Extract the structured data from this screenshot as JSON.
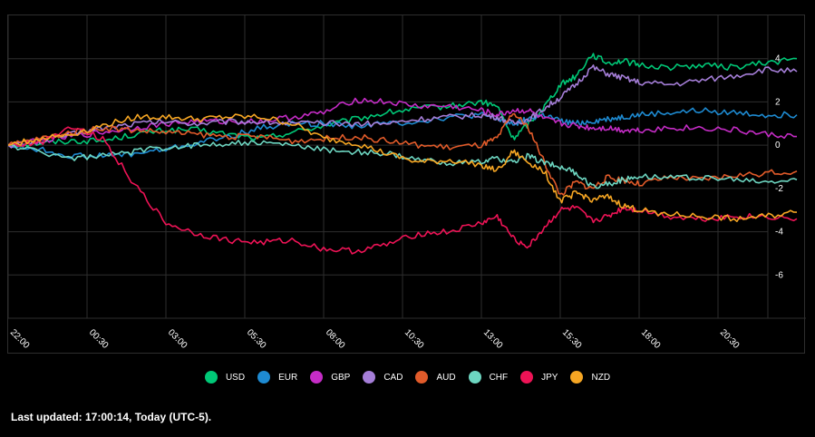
{
  "chart_data": {
    "type": "line",
    "x_ticks": [
      "22:00",
      "00:30",
      "03:00",
      "05:30",
      "08:00",
      "10:30",
      "13:00",
      "15:30",
      "18:00",
      "20:30"
    ],
    "y_ticks": [
      "4",
      "2",
      "0",
      "-2",
      "-4",
      "-6"
    ],
    "ylim": [
      -8,
      6
    ],
    "grid": true,
    "legend_position": "bottom",
    "series": [
      {
        "name": "USD",
        "color": "#00c877",
        "x": [
          22.0,
          23.0,
          24.0,
          25.0,
          26.0,
          27.0,
          28.0,
          29.0,
          30.0,
          31.0,
          32.0,
          33.0,
          34.0,
          35.0,
          36.0,
          37.0,
          37.5,
          38.0,
          38.5,
          39.0,
          39.5,
          40.0,
          40.5,
          41.0,
          41.5,
          42.0,
          43.0,
          44.0,
          45.0,
          46.0,
          47.0
        ],
        "y": [
          0,
          0.1,
          0.2,
          0.2,
          0.5,
          0.7,
          0.7,
          0.5,
          0.3,
          0.6,
          0.9,
          1.2,
          1.5,
          1.7,
          1.8,
          2.0,
          1.8,
          0.3,
          1.0,
          1.8,
          2.8,
          3.2,
          4.2,
          3.8,
          3.9,
          3.7,
          3.6,
          3.7,
          3.6,
          3.8,
          4.0
        ]
      },
      {
        "name": "EUR",
        "color": "#1e8bd2",
        "x": [
          22.0,
          23.0,
          24.0,
          25.0,
          26.0,
          27.0,
          28.0,
          29.0,
          30.0,
          31.0,
          32.0,
          33.0,
          34.0,
          35.0,
          36.0,
          37.0,
          37.5,
          38.0,
          38.5,
          39.0,
          39.5,
          40.0,
          40.5,
          41.0,
          41.5,
          42.0,
          43.0,
          44.0,
          45.0,
          46.0,
          47.0
        ],
        "y": [
          0,
          -0.2,
          -0.5,
          -0.5,
          -0.4,
          -0.2,
          0.1,
          0.4,
          0.8,
          1.0,
          1.0,
          0.9,
          1.0,
          1.1,
          1.3,
          1.4,
          1.2,
          1.0,
          1.2,
          1.4,
          1.1,
          1.0,
          1.1,
          1.2,
          1.3,
          1.4,
          1.5,
          1.6,
          1.5,
          1.4,
          1.4
        ]
      },
      {
        "name": "GBP",
        "color": "#c52cc6",
        "x": [
          22.0,
          23.0,
          24.0,
          25.0,
          26.0,
          27.0,
          28.0,
          29.0,
          30.0,
          31.0,
          32.0,
          33.0,
          34.0,
          35.0,
          36.0,
          37.0,
          37.5,
          38.0,
          38.5,
          39.0,
          39.5,
          40.0,
          40.5,
          41.0,
          41.5,
          42.0,
          43.0,
          44.0,
          45.0,
          46.0,
          47.0
        ],
        "y": [
          0,
          0.2,
          0.4,
          0.6,
          0.8,
          1.0,
          1.1,
          1.1,
          1.1,
          1.3,
          1.5,
          2.1,
          2.0,
          1.8,
          1.8,
          1.6,
          1.4,
          1.6,
          1.6,
          1.2,
          1.0,
          0.9,
          0.8,
          0.8,
          0.7,
          0.7,
          0.8,
          0.8,
          0.7,
          0.5,
          0.4
        ]
      },
      {
        "name": "CAD",
        "color": "#a57ed8",
        "x": [
          22.0,
          23.0,
          24.0,
          25.0,
          26.0,
          27.0,
          28.0,
          29.0,
          30.0,
          31.0,
          32.0,
          33.0,
          34.0,
          35.0,
          36.0,
          37.0,
          37.5,
          38.0,
          38.5,
          39.0,
          39.5,
          40.0,
          40.5,
          41.0,
          41.5,
          42.0,
          43.0,
          44.0,
          45.0,
          46.0,
          47.0
        ],
        "y": [
          0,
          0.2,
          0.5,
          0.8,
          1.0,
          1.1,
          1.0,
          1.1,
          1.1,
          1.0,
          1.0,
          1.0,
          1.0,
          1.2,
          1.3,
          1.4,
          1.3,
          1.0,
          1.2,
          1.7,
          2.2,
          2.8,
          3.6,
          3.3,
          3.1,
          2.9,
          2.8,
          3.0,
          3.2,
          3.5,
          3.4
        ]
      },
      {
        "name": "AUD",
        "color": "#e15b2a",
        "x": [
          22.0,
          23.0,
          24.0,
          25.0,
          26.0,
          27.0,
          28.0,
          29.0,
          30.0,
          31.0,
          32.0,
          33.0,
          34.0,
          35.0,
          36.0,
          37.0,
          37.5,
          38.0,
          38.5,
          39.0,
          39.5,
          40.0,
          40.5,
          41.0,
          41.5,
          42.0,
          43.0,
          44.0,
          45.0,
          46.0,
          47.0
        ],
        "y": [
          0,
          0.3,
          0.6,
          0.8,
          0.7,
          0.6,
          0.5,
          0.4,
          0.4,
          0.2,
          0.3,
          0.4,
          0.2,
          0.0,
          -0.1,
          0.0,
          0.3,
          1.5,
          0.8,
          -0.8,
          -2.3,
          -1.7,
          -2.0,
          -1.5,
          -1.6,
          -1.8,
          -1.5,
          -1.6,
          -1.4,
          -1.3,
          -1.2
        ]
      },
      {
        "name": "CHF",
        "color": "#6dd6c1",
        "x": [
          22.0,
          23.0,
          24.0,
          25.0,
          26.0,
          27.0,
          28.0,
          29.0,
          30.0,
          31.0,
          32.0,
          33.0,
          34.0,
          35.0,
          36.0,
          37.0,
          37.5,
          38.0,
          38.5,
          39.0,
          39.5,
          40.0,
          40.5,
          41.0,
          41.5,
          42.0,
          43.0,
          44.0,
          45.0,
          46.0,
          47.0
        ],
        "y": [
          0,
          -0.3,
          -0.6,
          -0.5,
          -0.3,
          -0.1,
          0.0,
          0.1,
          0.1,
          0.0,
          -0.2,
          -0.3,
          -0.4,
          -0.7,
          -0.8,
          -0.8,
          -0.6,
          -0.8,
          -0.5,
          -0.8,
          -1.0,
          -1.3,
          -1.9,
          -1.8,
          -1.6,
          -1.4,
          -1.5,
          -1.5,
          -1.6,
          -1.7,
          -1.6
        ]
      },
      {
        "name": "JPY",
        "color": "#ee1356",
        "x": [
          22.0,
          23.0,
          24.0,
          25.0,
          26.0,
          27.0,
          28.0,
          29.0,
          30.0,
          31.0,
          32.0,
          33.0,
          34.0,
          35.0,
          36.0,
          37.0,
          37.5,
          38.0,
          38.5,
          39.0,
          39.5,
          40.0,
          40.5,
          41.0,
          41.5,
          42.0,
          43.0,
          44.0,
          45.0,
          46.0,
          47.0
        ],
        "y": [
          0,
          0.1,
          0.9,
          0.3,
          -1.8,
          -3.6,
          -4.1,
          -4.4,
          -4.5,
          -4.4,
          -4.8,
          -4.9,
          -4.6,
          -4.1,
          -4.0,
          -3.6,
          -3.3,
          -4.3,
          -4.7,
          -3.8,
          -3.0,
          -2.9,
          -3.5,
          -3.3,
          -2.9,
          -3.0,
          -3.3,
          -3.4,
          -3.3,
          -3.3,
          -3.4
        ]
      },
      {
        "name": "NZD",
        "color": "#f6a623",
        "x": [
          22.0,
          23.0,
          24.0,
          25.0,
          26.0,
          27.0,
          28.0,
          29.0,
          30.0,
          31.0,
          32.0,
          33.0,
          34.0,
          35.0,
          36.0,
          37.0,
          37.5,
          38.0,
          38.5,
          39.0,
          39.5,
          40.0,
          40.5,
          41.0,
          41.5,
          42.0,
          43.0,
          44.0,
          45.0,
          46.0,
          47.0
        ],
        "y": [
          0,
          0.3,
          0.5,
          0.9,
          1.3,
          1.3,
          1.2,
          1.3,
          1.3,
          1.0,
          0.3,
          0.1,
          -0.4,
          -0.8,
          -0.7,
          -0.9,
          -1.2,
          -0.3,
          -0.8,
          -1.2,
          -2.6,
          -2.2,
          -2.5,
          -2.4,
          -2.8,
          -3.0,
          -3.2,
          -3.3,
          -3.4,
          -3.3,
          -3.1
        ]
      }
    ]
  },
  "legend": {
    "items": [
      {
        "label": "USD",
        "color": "#00c877"
      },
      {
        "label": "EUR",
        "color": "#1e8bd2"
      },
      {
        "label": "GBP",
        "color": "#c52cc6"
      },
      {
        "label": "CAD",
        "color": "#a57ed8"
      },
      {
        "label": "AUD",
        "color": "#e15b2a"
      },
      {
        "label": "CHF",
        "color": "#6dd6c1"
      },
      {
        "label": "JPY",
        "color": "#ee1356"
      },
      {
        "label": "NZD",
        "color": "#f6a623"
      }
    ]
  },
  "footer": {
    "last_updated": "Last updated: 17:00:14, Today (UTC-5)."
  }
}
